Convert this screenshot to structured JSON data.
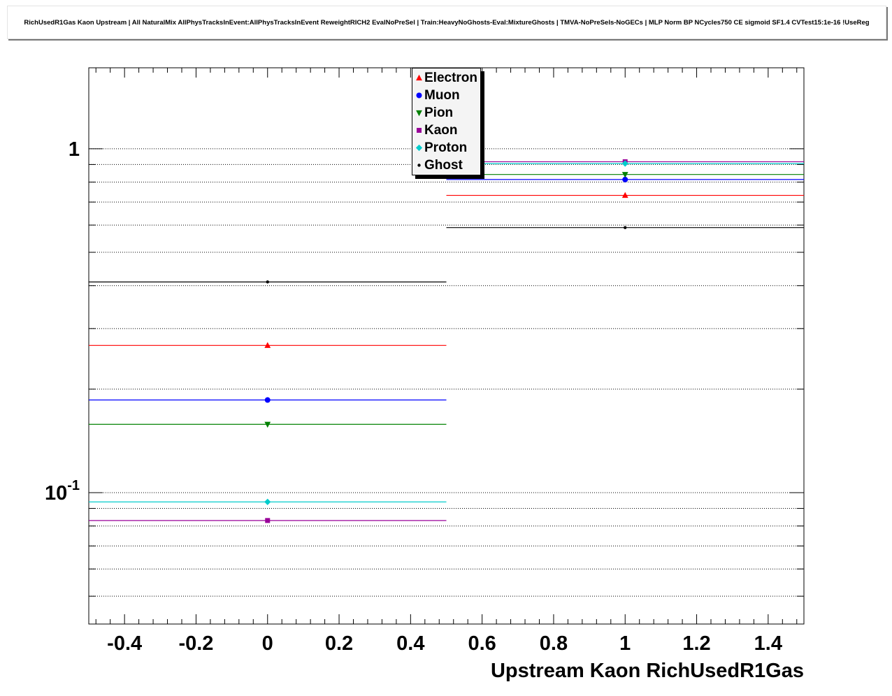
{
  "chart_data": {
    "type": "scatter",
    "title": "RichUsedR1Gas Kaon Upstream | All NaturalMix AllPhysTracksInEvent:AllPhysTracksInEvent ReweightRICH2 EvalNoPreSel | Train:HeavyNoGhosts-Eval:MixtureGhosts | TMVA-NoPreSels-NoGECs | MLP Norm BP NCycles750 CE sigmoid SF1.4 CVTest15:1e-16 !UseReg",
    "xlabel": "Upstream Kaon RichUsedR1Gas",
    "ylabel": "",
    "xlim": [
      -0.5,
      1.5
    ],
    "ylim": [
      0.0415,
      1.72
    ],
    "yscale": "log",
    "grid": "horizontal-dotted",
    "x_minor_step": 0.04,
    "x_ticks": [
      {
        "v": -0.4,
        "label": "-0.4"
      },
      {
        "v": -0.2,
        "label": "-0.2"
      },
      {
        "v": 0,
        "label": "0"
      },
      {
        "v": 0.2,
        "label": "0.2"
      },
      {
        "v": 0.4,
        "label": "0.4"
      },
      {
        "v": 0.6,
        "label": "0.6"
      },
      {
        "v": 0.8,
        "label": "0.8"
      },
      {
        "v": 1,
        "label": "1"
      },
      {
        "v": 1.2,
        "label": "1.2"
      },
      {
        "v": 1.4,
        "label": "1.4"
      }
    ],
    "y_ticks": [
      {
        "v": 1,
        "label": "1",
        "exp": ""
      },
      {
        "v": 0.1,
        "label": "10",
        "exp": "-1"
      }
    ],
    "legend_position": "top-center",
    "series": [
      {
        "name": "Electron",
        "color": "#ff0000",
        "marker": "triangle-up",
        "x": [
          0,
          1
        ],
        "y": [
          0.268,
          0.732
        ],
        "xerr": 0.5
      },
      {
        "name": "Muon",
        "color": "#0000ff",
        "marker": "circle",
        "x": [
          0,
          1
        ],
        "y": [
          0.186,
          0.814
        ],
        "xerr": 0.5
      },
      {
        "name": "Pion",
        "color": "#008000",
        "marker": "triangle-down",
        "x": [
          0,
          1
        ],
        "y": [
          0.158,
          0.842
        ],
        "xerr": 0.5
      },
      {
        "name": "Kaon",
        "color": "#990099",
        "marker": "square",
        "x": [
          0,
          1
        ],
        "y": [
          0.083,
          0.917
        ],
        "xerr": 0.5
      },
      {
        "name": "Proton",
        "color": "#00cccc",
        "marker": "diamond",
        "x": [
          0,
          1
        ],
        "y": [
          0.094,
          0.906
        ],
        "xerr": 0.5
      },
      {
        "name": "Ghost",
        "color": "#000000",
        "marker": "dot",
        "x": [
          0,
          1
        ],
        "y": [
          0.41,
          0.59
        ],
        "xerr": 0.5
      }
    ]
  }
}
